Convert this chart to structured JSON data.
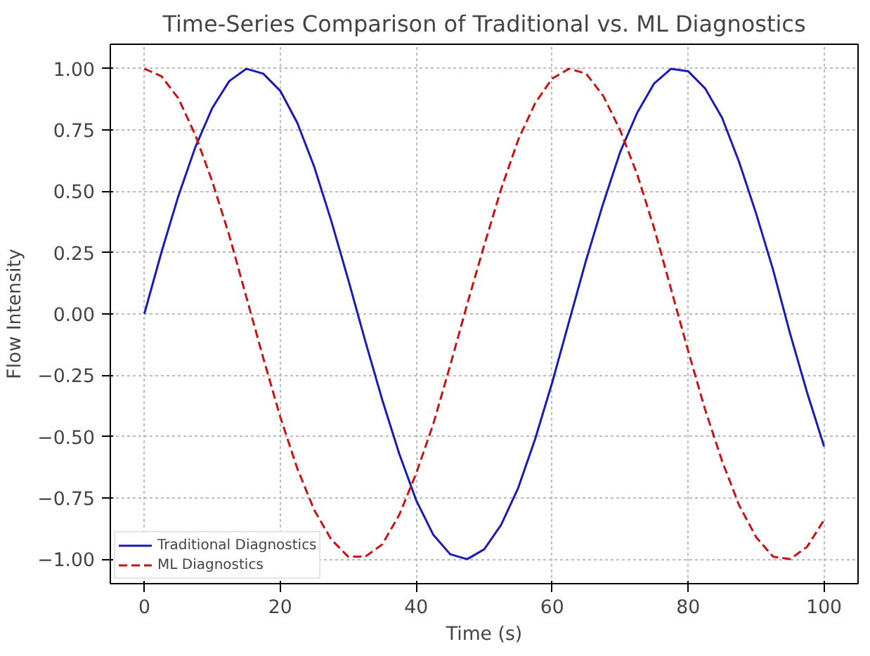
{
  "chart_data": {
    "type": "line",
    "title": "Time-Series Comparison of Traditional vs. ML Diagnostics",
    "xlabel": "Time (s)",
    "ylabel": "Flow Intensity",
    "x": [
      0,
      2.5,
      5,
      7.5,
      10,
      12.5,
      15,
      17.5,
      20,
      22.5,
      25,
      27.5,
      30,
      32.5,
      35,
      37.5,
      40,
      42.5,
      45,
      47.5,
      50,
      52.5,
      55,
      57.5,
      60,
      62.5,
      65,
      67.5,
      70,
      72.5,
      75,
      77.5,
      80,
      82.5,
      85,
      87.5,
      90,
      92.5,
      95,
      97.5,
      100
    ],
    "series": [
      {
        "name": "Traditional Diagnostics",
        "color": "#1a1ab8",
        "line_style": "solid",
        "values": [
          0,
          0.25,
          0.48,
          0.68,
          0.84,
          0.95,
          1.0,
          0.98,
          0.91,
          0.78,
          0.6,
          0.38,
          0.14,
          -0.11,
          -0.35,
          -0.57,
          -0.76,
          -0.9,
          -0.98,
          -1.0,
          -0.96,
          -0.86,
          -0.71,
          -0.51,
          -0.28,
          -0.03,
          0.22,
          0.45,
          0.66,
          0.82,
          0.94,
          1.0,
          0.99,
          0.92,
          0.8,
          0.62,
          0.41,
          0.18,
          -0.08,
          -0.32,
          -0.54
        ]
      },
      {
        "name": "ML Diagnostics",
        "color": "#cc1111",
        "line_style": "dashed",
        "values": [
          1.0,
          0.97,
          0.88,
          0.73,
          0.54,
          0.32,
          0.07,
          -0.18,
          -0.42,
          -0.63,
          -0.8,
          -0.92,
          -0.99,
          -0.99,
          -0.94,
          -0.82,
          -0.65,
          -0.45,
          -0.21,
          0.04,
          0.28,
          0.51,
          0.71,
          0.86,
          0.96,
          1.0,
          0.98,
          0.89,
          0.75,
          0.57,
          0.35,
          0.1,
          -0.15,
          -0.39,
          -0.6,
          -0.78,
          -0.91,
          -0.99,
          -1.0,
          -0.95,
          -0.84
        ]
      }
    ],
    "xlim": [
      -5,
      105
    ],
    "ylim": [
      -1.1,
      1.1
    ],
    "xticks": [
      0,
      20,
      40,
      60,
      80,
      100
    ],
    "yticks": [
      {
        "value": -1,
        "label": "−1.00"
      },
      {
        "value": -0.75,
        "label": "−0.75"
      },
      {
        "value": -0.5,
        "label": "−0.50"
      },
      {
        "value": -0.25,
        "label": "−0.25"
      },
      {
        "value": 0,
        "label": "0.00"
      },
      {
        "value": 0.25,
        "label": "0.25"
      },
      {
        "value": 0.5,
        "label": "0.50"
      },
      {
        "value": 0.75,
        "label": "0.75"
      },
      {
        "value": 1,
        "label": "1.00"
      }
    ],
    "grid": true,
    "legend": "bottom left"
  }
}
